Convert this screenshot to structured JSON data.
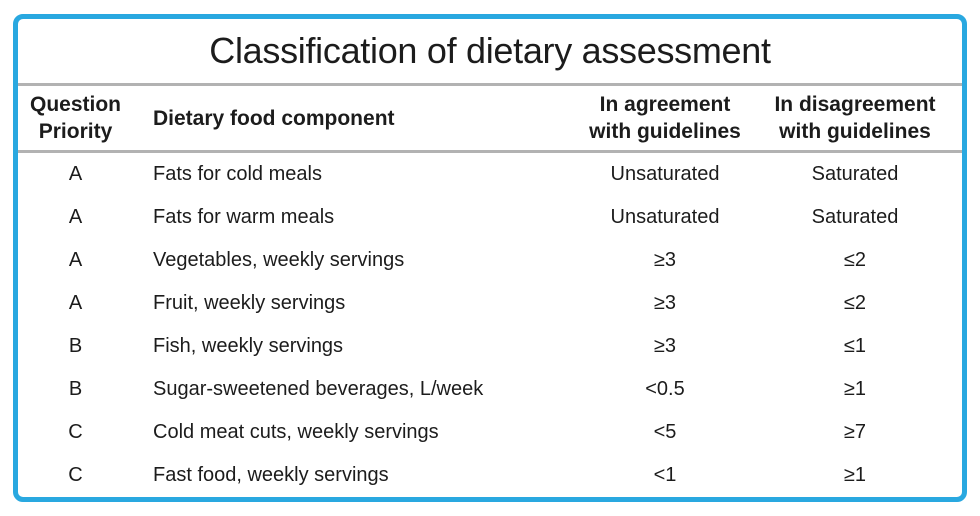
{
  "title": "Classification of dietary assessment",
  "colors": {
    "border": "#29a8e0",
    "divider": "#b2b2b2",
    "text": "#1c1c1c",
    "background": "#ffffff"
  },
  "table": {
    "columns": [
      {
        "id": "priority",
        "lines": [
          "Question",
          "Priority"
        ]
      },
      {
        "id": "component",
        "lines": [
          "Dietary food component"
        ]
      },
      {
        "id": "agreement",
        "lines": [
          "In agreement",
          "with guidelines"
        ]
      },
      {
        "id": "disagreement",
        "lines": [
          "In disagreement",
          "with guidelines"
        ]
      }
    ],
    "rows": [
      {
        "priority": "A",
        "component": "Fats for cold meals",
        "agreement": "Unsaturated",
        "disagreement": "Saturated"
      },
      {
        "priority": "A",
        "component": "Fats for warm meals",
        "agreement": "Unsaturated",
        "disagreement": "Saturated"
      },
      {
        "priority": "A",
        "component": "Vegetables, weekly servings",
        "agreement": "≥3",
        "disagreement": "≤2"
      },
      {
        "priority": "A",
        "component": "Fruit, weekly servings",
        "agreement": "≥3",
        "disagreement": "≤2"
      },
      {
        "priority": "B",
        "component": "Fish, weekly servings",
        "agreement": "≥3",
        "disagreement": "≤1"
      },
      {
        "priority": "B",
        "component": "Sugar-sweetened beverages, L/week",
        "agreement": "<0.5",
        "disagreement": "≥1"
      },
      {
        "priority": "C",
        "component": "Cold meat cuts, weekly servings",
        "agreement": "<5",
        "disagreement": "≥7"
      },
      {
        "priority": "C",
        "component": "Fast food, weekly servings",
        "agreement": "<1",
        "disagreement": "≥1"
      }
    ]
  }
}
